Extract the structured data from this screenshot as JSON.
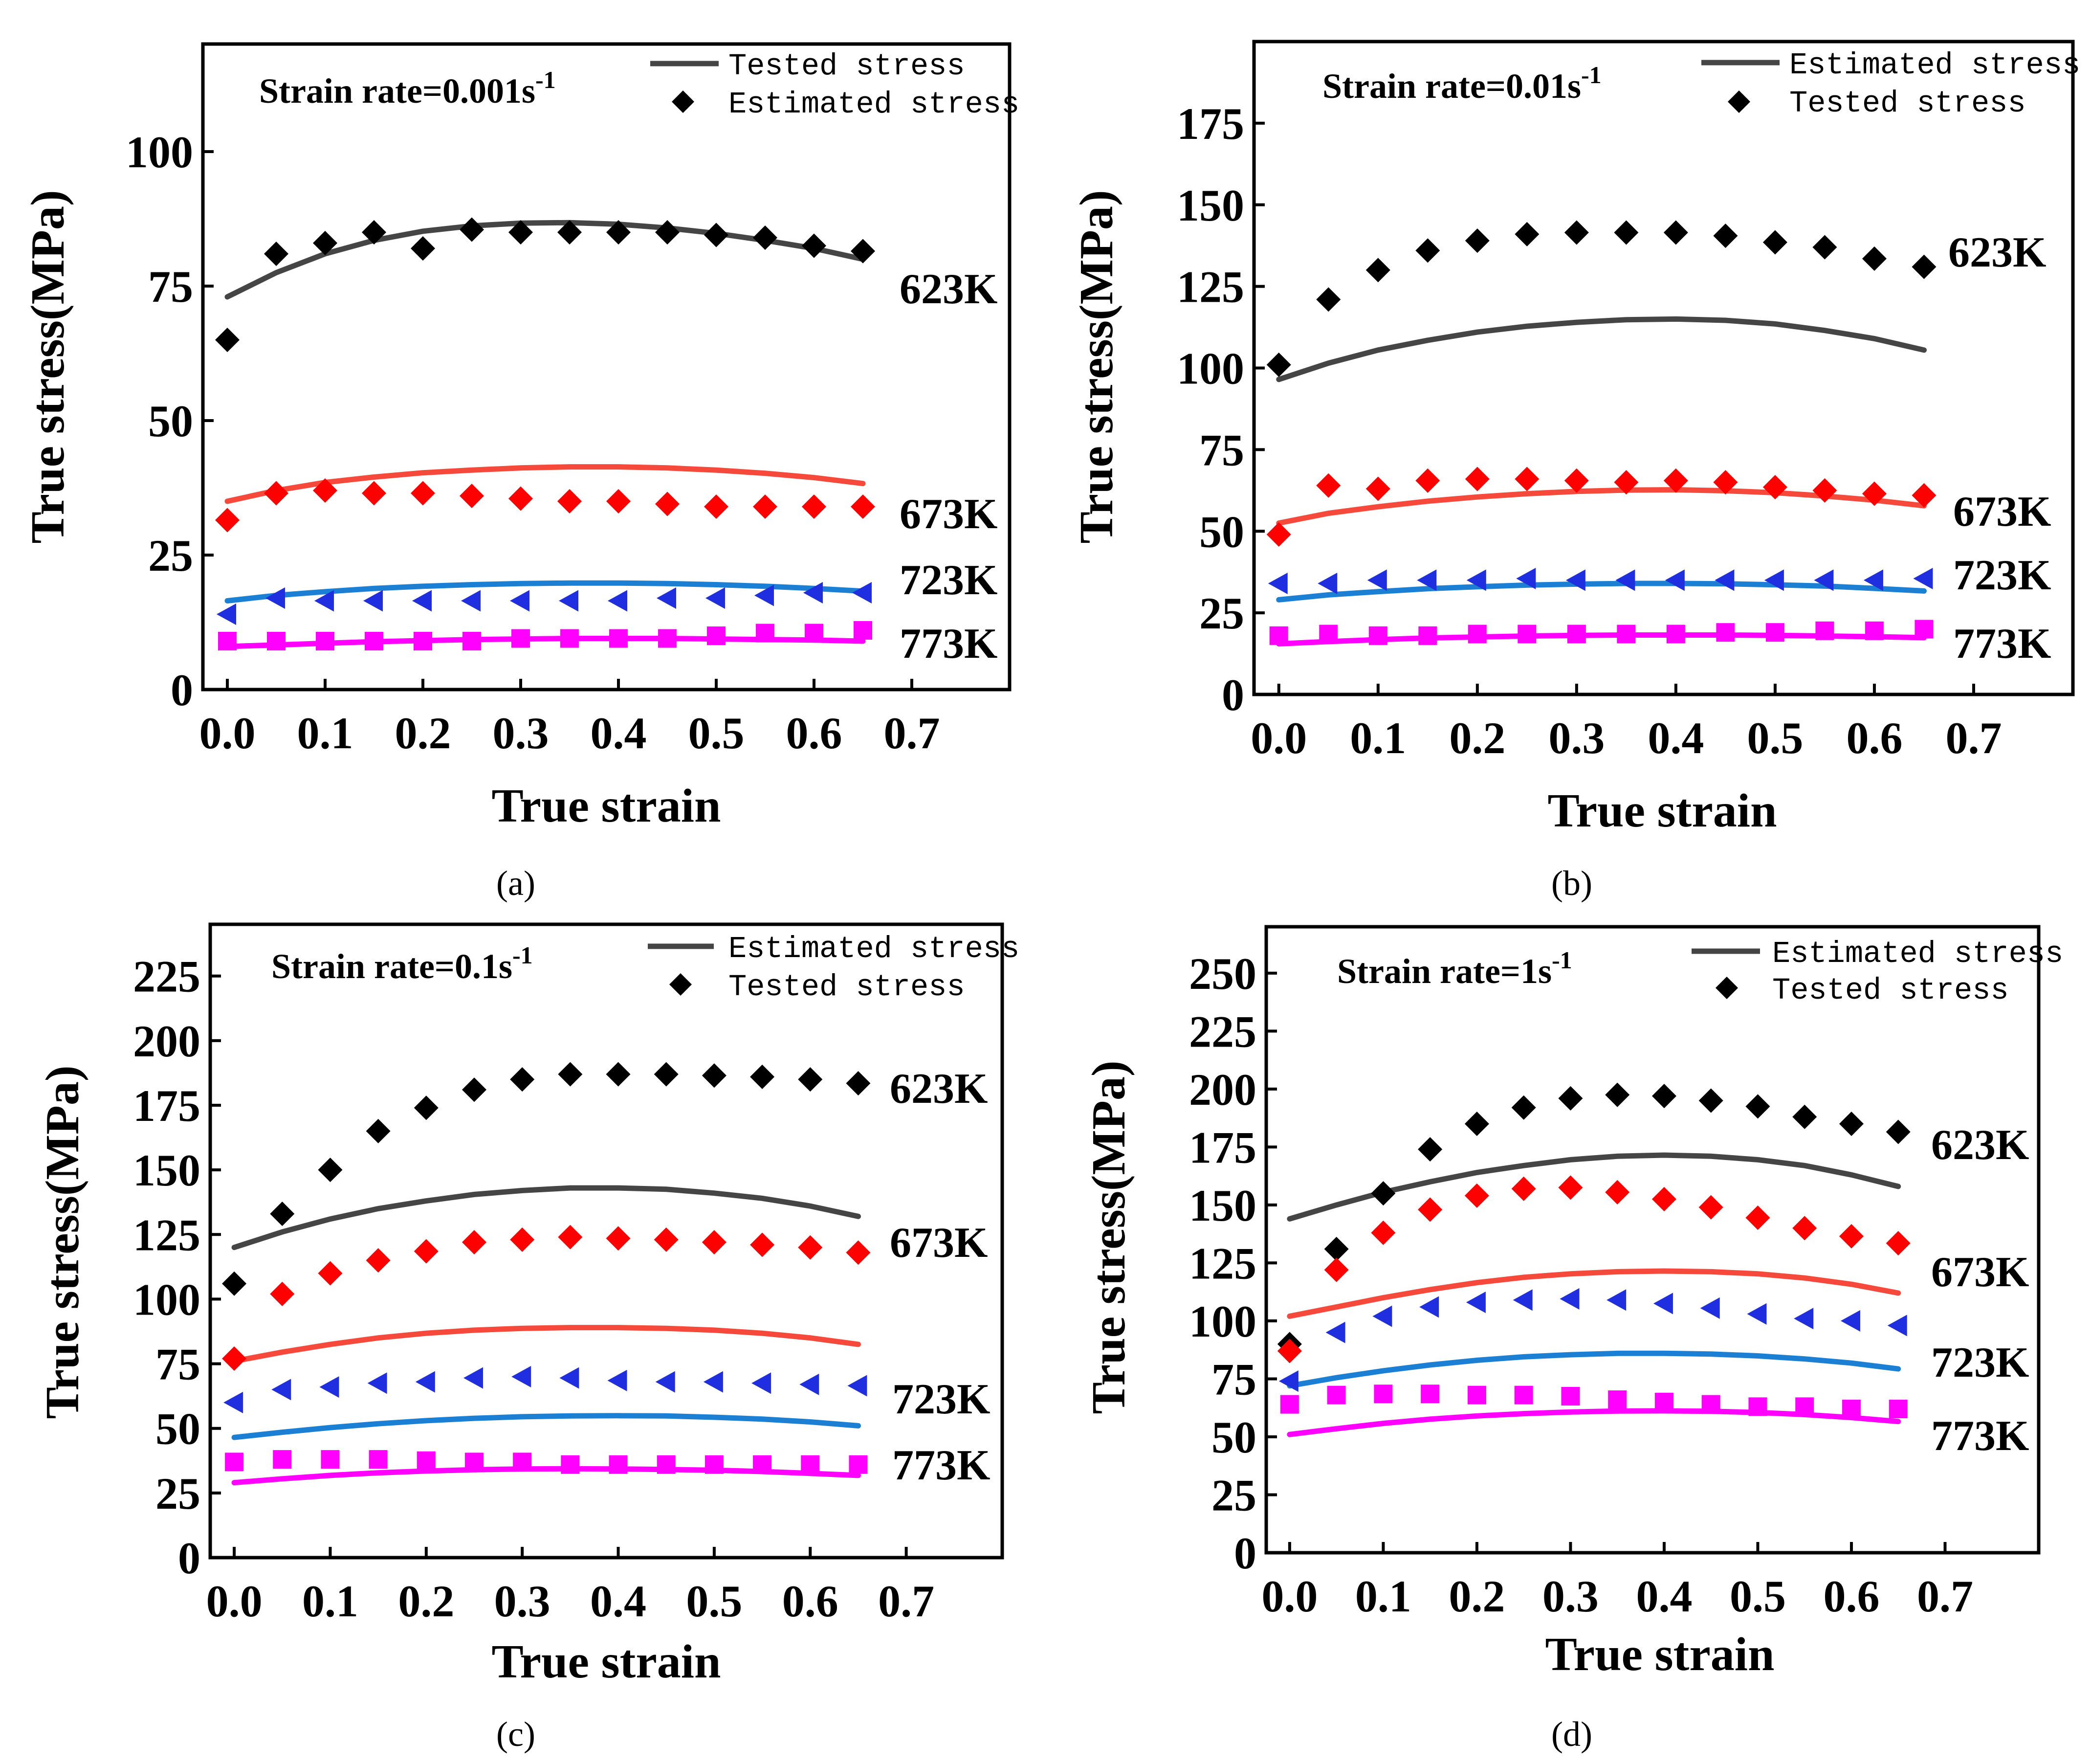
{
  "figure": {
    "y_axis_label": "True stress(MPa)",
    "x_axis_label": "True strain"
  },
  "chart_data": [
    {
      "type": "scatter",
      "panel": "(a)",
      "title": "Strain rate=0.001s",
      "title_sup": "-1",
      "xlabel": "True strain",
      "ylabel": "True stress(MPa)",
      "xlim": [
        -0.025,
        0.8
      ],
      "ylim": [
        0,
        120
      ],
      "xticks": [
        "0.0",
        "0.1",
        "0.2",
        "0.3",
        "0.4",
        "0.5",
        "0.6",
        "0.7"
      ],
      "yticks": [
        "0",
        "25",
        "50",
        "75",
        "100"
      ],
      "legend": {
        "line_label": "Tested stress",
        "marker_label": "Estimated stress"
      },
      "x": [
        0.0,
        0.05,
        0.1,
        0.15,
        0.2,
        0.25,
        0.3,
        0.35,
        0.4,
        0.45,
        0.5,
        0.55,
        0.6,
        0.65
      ],
      "series": [
        {
          "name": "623K",
          "color": "#000000",
          "curve_color": "#454545",
          "marker": "diamond",
          "points": [
            65,
            81,
            83,
            85,
            82,
            85.5,
            85,
            85,
            85,
            85,
            84.5,
            84,
            82.5,
            81.5
          ],
          "curve": [
            73,
            77.5,
            81,
            83.5,
            85.2,
            86.2,
            86.7,
            86.8,
            86.5,
            85.8,
            84.8,
            83.5,
            82,
            80
          ]
        },
        {
          "name": "673K",
          "color": "#ff0000",
          "curve_color": "#f5493c",
          "marker": "diamond",
          "points": [
            31.5,
            36.5,
            37,
            36.5,
            36.5,
            36,
            35.5,
            35,
            35,
            34.5,
            34,
            34,
            34,
            34
          ],
          "curve": [
            35,
            37,
            38.5,
            39.5,
            40.3,
            40.8,
            41.2,
            41.4,
            41.4,
            41.2,
            40.8,
            40.2,
            39.4,
            38.3
          ]
        },
        {
          "name": "723K",
          "color": "#1f2fe0",
          "curve_color": "#1b7fd4",
          "marker": "triangle-left",
          "points": [
            14,
            17,
            16.5,
            16.5,
            16.5,
            16.5,
            16.5,
            16.5,
            16.5,
            17,
            17,
            17.5,
            18,
            18
          ],
          "curve": [
            16.5,
            17.5,
            18.2,
            18.8,
            19.2,
            19.5,
            19.7,
            19.8,
            19.8,
            19.7,
            19.5,
            19.2,
            18.8,
            18.3
          ]
        },
        {
          "name": "773K",
          "color": "#ff00ff",
          "curve_color": "#ff00ff",
          "marker": "square",
          "points": [
            9,
            9,
            9,
            9,
            9,
            9,
            9.5,
            9.5,
            9.5,
            9.5,
            10,
            10.5,
            10.5,
            11
          ],
          "curve": [
            8,
            8.3,
            8.6,
            8.9,
            9.1,
            9.3,
            9.4,
            9.5,
            9.5,
            9.5,
            9.4,
            9.3,
            9.2,
            9.0
          ]
        }
      ]
    },
    {
      "type": "scatter",
      "panel": "(b)",
      "title": "Strain rate=0.01s",
      "title_sup": "-1",
      "xlabel": "True strain",
      "ylabel": "True stress(MPa)",
      "xlim": [
        -0.025,
        0.8
      ],
      "ylim": [
        0,
        200
      ],
      "xticks": [
        "0.0",
        "0.1",
        "0.2",
        "0.3",
        "0.4",
        "0.5",
        "0.6",
        "0.7"
      ],
      "yticks": [
        "0",
        "25",
        "50",
        "75",
        "100",
        "125",
        "150",
        "175"
      ],
      "legend": {
        "line_label": "Estimated stress",
        "marker_label": "Tested stress"
      },
      "x": [
        0.0,
        0.05,
        0.1,
        0.15,
        0.2,
        0.25,
        0.3,
        0.35,
        0.4,
        0.45,
        0.5,
        0.55,
        0.6,
        0.65
      ],
      "series": [
        {
          "name": "623K",
          "color": "#000000",
          "curve_color": "#454545",
          "marker": "diamond",
          "points": [
            101,
            121,
            130,
            136,
            139,
            141,
            141.5,
            141.5,
            141.5,
            140.5,
            138.5,
            137,
            133.5,
            131
          ],
          "curve": [
            96.5,
            101.5,
            105.5,
            108.5,
            111,
            112.8,
            114,
            114.8,
            115,
            114.6,
            113.5,
            111.5,
            109,
            105.5
          ]
        },
        {
          "name": "673K",
          "color": "#ff0000",
          "curve_color": "#f5493c",
          "marker": "diamond",
          "points": [
            49,
            64,
            63,
            65.5,
            66,
            66,
            65.5,
            65,
            65.5,
            65,
            63.5,
            62.5,
            61.5,
            61
          ],
          "curve": [
            52.5,
            55.5,
            57.5,
            59.2,
            60.5,
            61.5,
            62.2,
            62.6,
            62.7,
            62.4,
            61.8,
            60.8,
            59.5,
            57.8
          ]
        },
        {
          "name": "723K",
          "color": "#1f2fe0",
          "curve_color": "#1b7fd4",
          "marker": "triangle-left",
          "points": [
            34,
            34,
            35,
            35,
            35,
            35.5,
            35,
            35,
            35,
            35,
            35,
            35,
            35,
            35.5
          ],
          "curve": [
            29,
            30.5,
            31.5,
            32.4,
            33,
            33.5,
            33.8,
            34,
            34,
            33.9,
            33.6,
            33.2,
            32.5,
            31.7
          ]
        },
        {
          "name": "773K",
          "color": "#ff00ff",
          "curve_color": "#ff00ff",
          "marker": "square",
          "points": [
            18,
            18.5,
            18,
            18,
            18.5,
            18.5,
            18.5,
            18.5,
            18.5,
            19,
            19,
            19.5,
            19.5,
            20
          ],
          "curve": [
            15.5,
            16.2,
            16.8,
            17.3,
            17.6,
            17.9,
            18.1,
            18.2,
            18.2,
            18.2,
            18.1,
            17.9,
            17.7,
            17.4
          ]
        }
      ]
    },
    {
      "type": "scatter",
      "panel": "(c)",
      "title": "Strain rate=0.1s",
      "title_sup": "-1",
      "xlabel": "True strain",
      "ylabel": "True stress(MPa)",
      "xlim": [
        -0.025,
        0.8
      ],
      "ylim": [
        0,
        245
      ],
      "xticks": [
        "0.0",
        "0.1",
        "0.2",
        "0.3",
        "0.4",
        "0.5",
        "0.6",
        "0.7"
      ],
      "yticks": [
        "0",
        "25",
        "50",
        "75",
        "100",
        "125",
        "150",
        "175",
        "200",
        "225"
      ],
      "legend": {
        "line_label": "Estimated stress",
        "marker_label": "Tested stress"
      },
      "x": [
        0.0,
        0.05,
        0.1,
        0.15,
        0.2,
        0.25,
        0.3,
        0.35,
        0.4,
        0.45,
        0.5,
        0.55,
        0.6,
        0.65
      ],
      "series": [
        {
          "name": "623K",
          "color": "#000000",
          "curve_color": "#454545",
          "marker": "diamond",
          "points": [
            106,
            133,
            150,
            165,
            174,
            181,
            185,
            187,
            187,
            187,
            186.5,
            186,
            185,
            183.5
          ],
          "curve": [
            120,
            126,
            131,
            135,
            138,
            140.5,
            142,
            143,
            143,
            142.5,
            141,
            139,
            136,
            132
          ]
        },
        {
          "name": "673K",
          "color": "#ff0000",
          "curve_color": "#f5493c",
          "marker": "diamond",
          "points": [
            77,
            102,
            110,
            115,
            118.5,
            122,
            123,
            124,
            123.5,
            123,
            122,
            121,
            120,
            118
          ],
          "curve": [
            76,
            79.5,
            82.5,
            85,
            86.8,
            88,
            88.7,
            89,
            89,
            88.7,
            88,
            86.8,
            85,
            82.5
          ]
        },
        {
          "name": "723K",
          "color": "#1f2fe0",
          "curve_color": "#1b7fd4",
          "marker": "triangle-left",
          "points": [
            60,
            65,
            66,
            67.5,
            68,
            69.5,
            70,
            69.5,
            68.5,
            68,
            68,
            67.5,
            67,
            66.5
          ],
          "curve": [
            46.5,
            48.5,
            50.3,
            51.8,
            53,
            53.9,
            54.5,
            54.8,
            54.9,
            54.8,
            54.3,
            53.6,
            52.5,
            51
          ]
        },
        {
          "name": "773K",
          "color": "#ff00ff",
          "curve_color": "#ff00ff",
          "marker": "square",
          "points": [
            37,
            38,
            38,
            38,
            37.5,
            37,
            37,
            36,
            36,
            36,
            36,
            36,
            36,
            36
          ],
          "curve": [
            29,
            30.5,
            31.8,
            32.8,
            33.5,
            34,
            34.3,
            34.4,
            34.3,
            34.1,
            33.8,
            33.3,
            32.6,
            31.8
          ]
        }
      ]
    },
    {
      "type": "scatter",
      "panel": "(d)",
      "title": "Strain rate=1s",
      "title_sup": "-1",
      "xlabel": "True strain",
      "ylabel": "True stress(MPa)",
      "xlim": [
        -0.025,
        0.8
      ],
      "ylim": [
        0,
        270
      ],
      "xticks": [
        "0.0",
        "0.1",
        "0.2",
        "0.3",
        "0.4",
        "0.5",
        "0.6",
        "0.7"
      ],
      "yticks": [
        "0",
        "25",
        "50",
        "75",
        "100",
        "125",
        "150",
        "175",
        "200",
        "225",
        "250"
      ],
      "legend": {
        "line_label": "Estimated stress",
        "marker_label": "Tested stress"
      },
      "x": [
        0.0,
        0.05,
        0.1,
        0.15,
        0.2,
        0.25,
        0.3,
        0.35,
        0.4,
        0.45,
        0.5,
        0.55,
        0.6,
        0.65
      ],
      "series": [
        {
          "name": "623K",
          "color": "#000000",
          "curve_color": "#454545",
          "marker": "diamond",
          "points": [
            90,
            131,
            155,
            174,
            185,
            192,
            196,
            197.5,
            197,
            195,
            192.5,
            188,
            185,
            181.5
          ],
          "curve": [
            144,
            150,
            155.5,
            160,
            164,
            167,
            169.5,
            171,
            171.5,
            171,
            169.5,
            167,
            163,
            158
          ]
        },
        {
          "name": "673K",
          "color": "#ff0000",
          "curve_color": "#f5493c",
          "marker": "diamond",
          "points": [
            87,
            122,
            138,
            148,
            154,
            157,
            157.5,
            155.5,
            152.5,
            149,
            144.5,
            140,
            136.5,
            133.5
          ],
          "curve": [
            102,
            106,
            110,
            113.5,
            116.5,
            118.8,
            120.3,
            121.2,
            121.5,
            121.2,
            120.3,
            118.5,
            115.8,
            112
          ]
        },
        {
          "name": "723K",
          "color": "#1f2fe0",
          "curve_color": "#1b7fd4",
          "marker": "triangle-left",
          "points": [
            74,
            95,
            102,
            106,
            108,
            109,
            109.5,
            109,
            107.5,
            105.5,
            103,
            101,
            100,
            98
          ],
          "curve": [
            72,
            75.5,
            78.5,
            81,
            83,
            84.5,
            85.4,
            86,
            86,
            85.7,
            84.9,
            83.6,
            81.8,
            79.3
          ]
        },
        {
          "name": "773K",
          "color": "#ff00ff",
          "curve_color": "#ff00ff",
          "marker": "square",
          "points": [
            64,
            68,
            68.5,
            68.5,
            68,
            68,
            67.5,
            66,
            65,
            64,
            63,
            63,
            62,
            62
          ],
          "curve": [
            51,
            53.5,
            55.8,
            57.6,
            59,
            60,
            60.7,
            61.1,
            61.2,
            61,
            60.5,
            59.6,
            58.3,
            56.6
          ]
        }
      ]
    }
  ]
}
